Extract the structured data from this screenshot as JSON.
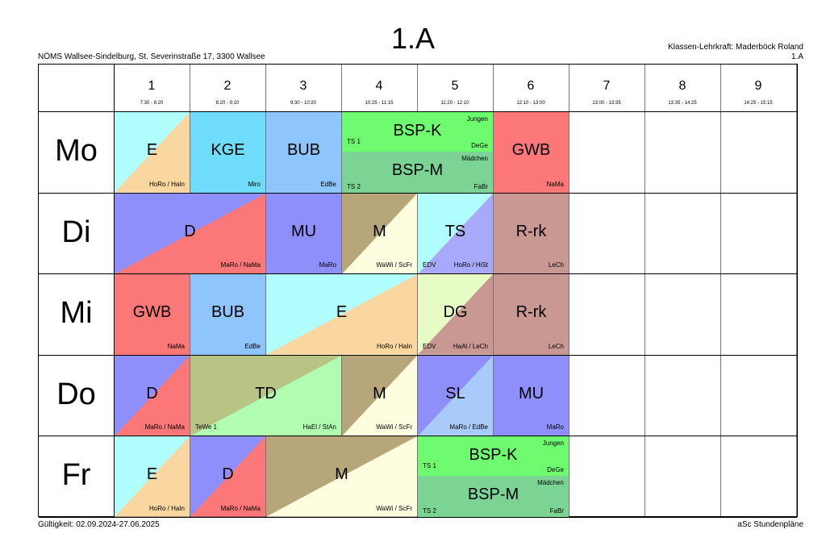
{
  "header": {
    "title": "1.A",
    "school": "NÖMS Wallsee-Sindelburg, St. Severinstraße 17, 3300 Wallsee",
    "teacher": "Klassen-Lehrkraft: Maderböck Roland",
    "class_code": "1.A"
  },
  "footer": {
    "validity": "Gültigkeit: 02.09.2024-27.06.2025",
    "brand": "aSc Stundenpläne"
  },
  "periods": [
    {
      "num": "1",
      "time": "7:30 - 8:20"
    },
    {
      "num": "2",
      "time": "8:20 - 9:10"
    },
    {
      "num": "3",
      "time": "9:30 - 10:20"
    },
    {
      "num": "4",
      "time": "10:25 - 11:15"
    },
    {
      "num": "5",
      "time": "11:20 - 12:10"
    },
    {
      "num": "6",
      "time": "12:10 - 13:00"
    },
    {
      "num": "7",
      "time": "13:00 - 13:35"
    },
    {
      "num": "8",
      "time": "13:35 - 14:25"
    },
    {
      "num": "9",
      "time": "14:25 - 15:15"
    }
  ],
  "days": [
    "Mo",
    "Di",
    "Mi",
    "Do",
    "Fr"
  ],
  "colors": {
    "cyan": "#b0fefe",
    "peach": "#fad7a0",
    "blue": "#6fdcfc",
    "lightblue": "#8ec5fc",
    "green": "#6ffb6f",
    "darkgreen": "#7bd394",
    "red": "#fc7878",
    "violet": "#8f8ffb",
    "tan": "#b7a67a",
    "cream": "#fffde0",
    "mauve": "#c99893",
    "olive": "#b7c484",
    "lightgreen": "#b0fcb0",
    "lime": "#e6fcc4",
    "lavender": "#a9a9fc",
    "skyblue": "#a9cbfc"
  },
  "lessons": [
    {
      "day": 0,
      "start": 0,
      "span": 1,
      "subject": "E",
      "teacher": "HoRo / HaIn",
      "colors": [
        "cyan",
        "peach"
      ]
    },
    {
      "day": 0,
      "start": 1,
      "span": 1,
      "subject": "KGE",
      "teacher": "Miro",
      "colors": [
        "blue"
      ]
    },
    {
      "day": 0,
      "start": 2,
      "span": 1,
      "subject": "BUB",
      "teacher": "EdBe",
      "colors": [
        "lightblue"
      ]
    },
    {
      "day": 0,
      "start": 3,
      "span": 2,
      "half": "top",
      "subject": "BSP-K",
      "group": "Jungen",
      "room": "TS 1",
      "teacher": "DeGe",
      "colors": [
        "green"
      ]
    },
    {
      "day": 0,
      "start": 3,
      "span": 2,
      "half": "bottom",
      "subject": "BSP-M",
      "group": "Mädchen",
      "room": "TS 2",
      "teacher": "FaBr",
      "colors": [
        "darkgreen"
      ]
    },
    {
      "day": 0,
      "start": 5,
      "span": 1,
      "subject": "GWB",
      "teacher": "NaMa",
      "colors": [
        "red"
      ]
    },
    {
      "day": 1,
      "start": 0,
      "span": 2,
      "subject": "D",
      "teacher": "MaRo / NaMa",
      "colors": [
        "violet",
        "red"
      ]
    },
    {
      "day": 1,
      "start": 2,
      "span": 1,
      "subject": "MU",
      "teacher": "MaRo",
      "colors": [
        "violet"
      ]
    },
    {
      "day": 1,
      "start": 3,
      "span": 1,
      "subject": "M",
      "teacher": "WaWi / ScFr",
      "colors": [
        "tan",
        "cream"
      ]
    },
    {
      "day": 1,
      "start": 4,
      "span": 1,
      "subject": "TS",
      "room": "EDV",
      "teacher": "HoRo / HiSt",
      "colors": [
        "cyan",
        "lavender"
      ]
    },
    {
      "day": 1,
      "start": 5,
      "span": 1,
      "subject": "R-rk",
      "teacher": "LeCh",
      "colors": [
        "mauve"
      ]
    },
    {
      "day": 2,
      "start": 0,
      "span": 1,
      "subject": "GWB",
      "teacher": "NaMa",
      "colors": [
        "red"
      ]
    },
    {
      "day": 2,
      "start": 1,
      "span": 1,
      "subject": "BUB",
      "teacher": "EdBe",
      "colors": [
        "lightblue"
      ]
    },
    {
      "day": 2,
      "start": 2,
      "span": 2,
      "subject": "E",
      "teacher": "HoRo / HaIn",
      "colors": [
        "cyan",
        "peach"
      ]
    },
    {
      "day": 2,
      "start": 4,
      "span": 1,
      "subject": "DG",
      "room": "EDV",
      "teacher": "HaAl / LeCh",
      "colors": [
        "lime",
        "mauve"
      ]
    },
    {
      "day": 2,
      "start": 5,
      "span": 1,
      "subject": "R-rk",
      "teacher": "LeCh",
      "colors": [
        "mauve"
      ]
    },
    {
      "day": 3,
      "start": 0,
      "span": 1,
      "subject": "D",
      "teacher": "MaRo / NaMa",
      "colors": [
        "violet",
        "red"
      ]
    },
    {
      "day": 3,
      "start": 1,
      "span": 2,
      "subject": "TD",
      "room": "TeWe 1",
      "teacher": "HaEl / StAn",
      "colors": [
        "olive",
        "lightgreen"
      ]
    },
    {
      "day": 3,
      "start": 3,
      "span": 1,
      "subject": "M",
      "teacher": "WaWi / ScFr",
      "colors": [
        "tan",
        "cream"
      ]
    },
    {
      "day": 3,
      "start": 4,
      "span": 1,
      "subject": "SL",
      "teacher": "MaRo / EdBe",
      "colors": [
        "violet",
        "skyblue"
      ]
    },
    {
      "day": 3,
      "start": 5,
      "span": 1,
      "subject": "MU",
      "teacher": "MaRo",
      "colors": [
        "violet"
      ]
    },
    {
      "day": 4,
      "start": 0,
      "span": 1,
      "subject": "E",
      "teacher": "HoRo / HaIn",
      "colors": [
        "cyan",
        "peach"
      ]
    },
    {
      "day": 4,
      "start": 1,
      "span": 1,
      "subject": "D",
      "teacher": "MaRo / NaMa",
      "colors": [
        "violet",
        "red"
      ]
    },
    {
      "day": 4,
      "start": 2,
      "span": 2,
      "subject": "M",
      "teacher": "WaWi / ScFr",
      "colors": [
        "tan",
        "cream"
      ]
    },
    {
      "day": 4,
      "start": 4,
      "span": 2,
      "half": "top",
      "subject": "BSP-K",
      "group": "Jungen",
      "room": "TS 1",
      "teacher": "DeGe",
      "colors": [
        "green"
      ]
    },
    {
      "day": 4,
      "start": 4,
      "span": 2,
      "half": "bottom",
      "subject": "BSP-M",
      "group": "Mädchen",
      "room": "TS 2",
      "teacher": "FaBr",
      "colors": [
        "darkgreen"
      ]
    }
  ]
}
